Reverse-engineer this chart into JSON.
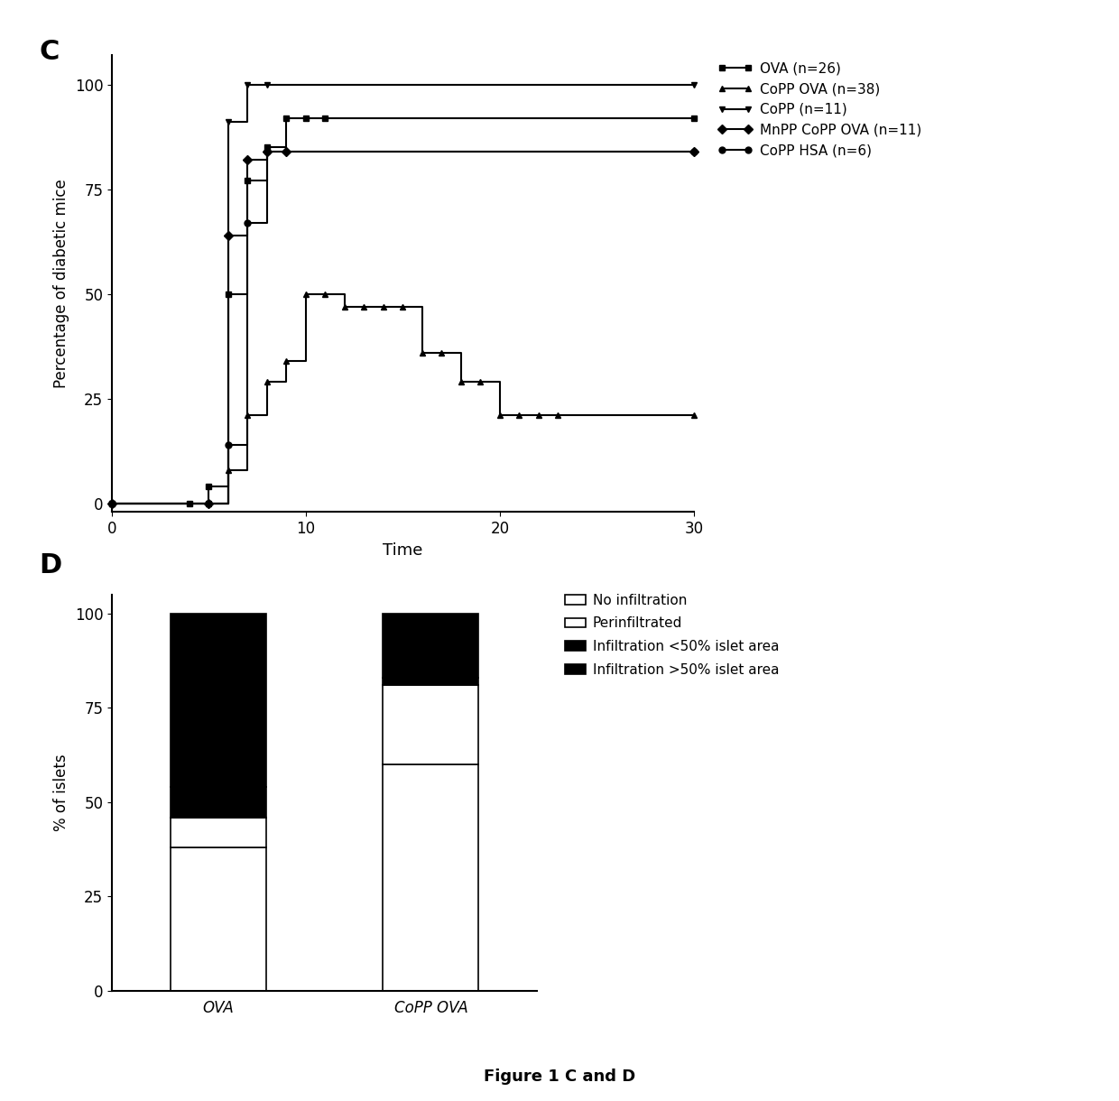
{
  "panel_C": {
    "xlabel": "Time",
    "ylabel": "Percentage of diabetic mice",
    "xlim": [
      0,
      30
    ],
    "ylim": [
      -2,
      107
    ],
    "xticks": [
      0,
      10,
      20,
      30
    ],
    "yticks": [
      0,
      25,
      50,
      75,
      100
    ],
    "series": [
      {
        "label": "OVA (n=26)",
        "marker": "s",
        "x": [
          0,
          4,
          5,
          6,
          7,
          8,
          9,
          10,
          11,
          30
        ],
        "y": [
          0,
          0,
          4,
          50,
          77,
          85,
          92,
          92,
          92,
          92
        ]
      },
      {
        "label": "CoPP OVA (n=38)",
        "marker": "^",
        "x": [
          0,
          5,
          6,
          7,
          8,
          9,
          10,
          11,
          12,
          13,
          14,
          15,
          16,
          17,
          18,
          19,
          20,
          21,
          22,
          23,
          30
        ],
        "y": [
          0,
          0,
          8,
          21,
          29,
          34,
          50,
          50,
          47,
          47,
          47,
          47,
          36,
          36,
          29,
          29,
          21,
          21,
          21,
          21,
          21
        ]
      },
      {
        "label": "CoPP (n=11)",
        "marker": "v",
        "x": [
          0,
          5,
          6,
          7,
          8,
          30
        ],
        "y": [
          0,
          0,
          91,
          100,
          100,
          100
        ]
      },
      {
        "label": "MnPP CoPP OVA (n=11)",
        "marker": "D",
        "x": [
          0,
          5,
          6,
          7,
          8,
          9,
          30
        ],
        "y": [
          0,
          0,
          64,
          82,
          84,
          84,
          84
        ]
      },
      {
        "label": "CoPP HSA (n=6)",
        "marker": "o",
        "x": [
          0,
          5,
          6,
          7,
          8,
          30
        ],
        "y": [
          0,
          0,
          14,
          67,
          84,
          84
        ]
      }
    ]
  },
  "panel_D": {
    "ylabel": "% of islets",
    "ylim": [
      0,
      105
    ],
    "yticks": [
      0,
      25,
      50,
      75,
      100
    ],
    "categories": [
      "OVA",
      "CoPP OVA"
    ],
    "segments": [
      {
        "label": "No infiltration",
        "color": "#ffffff",
        "edgecolor": "#000000",
        "values": [
          38,
          60
        ]
      },
      {
        "label": "Perinfiltrated",
        "color": "#ffffff",
        "edgecolor": "#000000",
        "values": [
          8,
          21
        ]
      },
      {
        "label": "Infiltration <50% islet area",
        "color": "#000000",
        "edgecolor": "#000000",
        "values": [
          8,
          2
        ]
      },
      {
        "label": "Infiltration >50% islet area",
        "color": "#000000",
        "edgecolor": "#000000",
        "values": [
          46,
          17
        ]
      }
    ]
  },
  "figure_title": "Figure 1 C and D",
  "bg_color": "#ffffff",
  "line_color": "#000000",
  "marker_size": 5,
  "linewidth": 1.5
}
